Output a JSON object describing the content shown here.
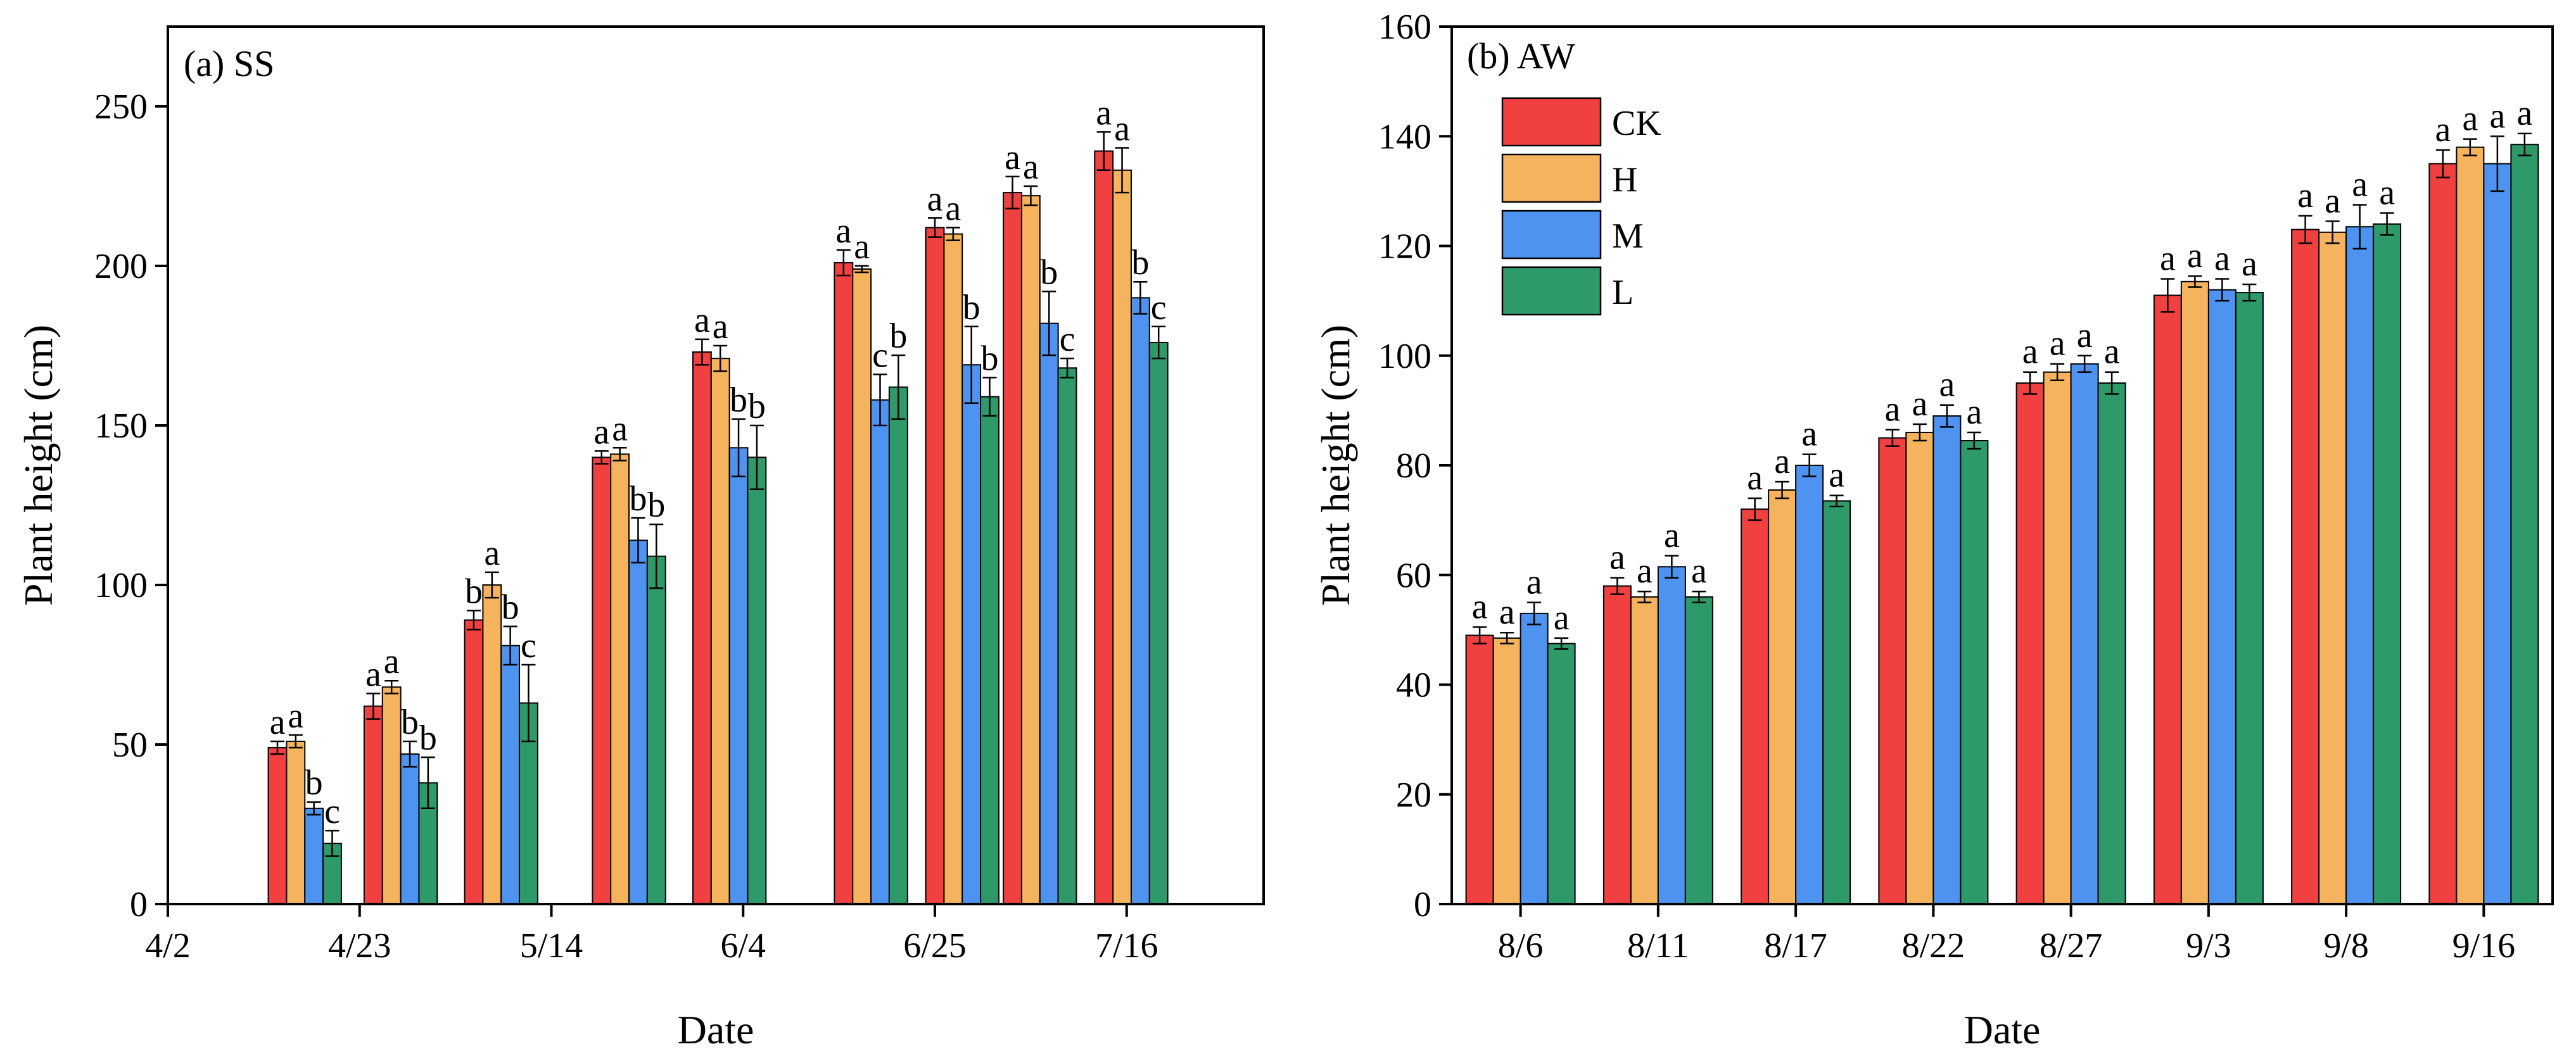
{
  "colors": {
    "CK": "#f0403f",
    "H": "#f6b35e",
    "M": "#4d93ef",
    "L": "#2f9a69",
    "axis": "#000000"
  },
  "chart_data": [
    {
      "type": "bar",
      "panel_label": "(a) SS",
      "xlabel": "Date",
      "ylabel": "Plant height (cm)",
      "xlim": [
        0,
        120
      ],
      "ylim": [
        0,
        275
      ],
      "xticks": [
        {
          "pos": 0,
          "label": "4/2"
        },
        {
          "pos": 21,
          "label": "4/23"
        },
        {
          "pos": 42,
          "label": "5/14"
        },
        {
          "pos": 63,
          "label": "6/4"
        },
        {
          "pos": 84,
          "label": "6/25"
        },
        {
          "pos": 105,
          "label": "7/16"
        }
      ],
      "yticks": [
        0,
        50,
        100,
        150,
        200,
        250
      ],
      "series_order": [
        "CK",
        "H",
        "M",
        "L"
      ],
      "groups": [
        {
          "center": 15,
          "bars": [
            {
              "series": "CK",
              "value": 49,
              "err": 2,
              "sig": "a"
            },
            {
              "series": "H",
              "value": 51,
              "err": 2,
              "sig": "a"
            },
            {
              "series": "M",
              "value": 30,
              "err": 2,
              "sig": "b"
            },
            {
              "series": "L",
              "value": 19,
              "err": 4,
              "sig": "c"
            }
          ]
        },
        {
          "center": 25.5,
          "bars": [
            {
              "series": "CK",
              "value": 62,
              "err": 4,
              "sig": "a"
            },
            {
              "series": "H",
              "value": 68,
              "err": 2,
              "sig": "a"
            },
            {
              "series": "M",
              "value": 47,
              "err": 4,
              "sig": "b"
            },
            {
              "series": "L",
              "value": 38,
              "err": 8,
              "sig": "b"
            }
          ]
        },
        {
          "center": 36.5,
          "bars": [
            {
              "series": "CK",
              "value": 89,
              "err": 3,
              "sig": "b"
            },
            {
              "series": "H",
              "value": 100,
              "err": 4,
              "sig": "a"
            },
            {
              "series": "M",
              "value": 81,
              "err": 6,
              "sig": "b"
            },
            {
              "series": "L",
              "value": 63,
              "err": 12,
              "sig": "c"
            }
          ]
        },
        {
          "center": 50.5,
          "bars": [
            {
              "series": "CK",
              "value": 140,
              "err": 2,
              "sig": "a"
            },
            {
              "series": "H",
              "value": 141,
              "err": 2,
              "sig": "a"
            },
            {
              "series": "M",
              "value": 114,
              "err": 7,
              "sig": "b"
            },
            {
              "series": "L",
              "value": 109,
              "err": 10,
              "sig": "b"
            }
          ]
        },
        {
          "center": 61.5,
          "bars": [
            {
              "series": "CK",
              "value": 173,
              "err": 4,
              "sig": "a"
            },
            {
              "series": "H",
              "value": 171,
              "err": 4,
              "sig": "a"
            },
            {
              "series": "M",
              "value": 143,
              "err": 9,
              "sig": "b"
            },
            {
              "series": "L",
              "value": 140,
              "err": 10,
              "sig": "b"
            }
          ]
        },
        {
          "center": 77,
          "bars": [
            {
              "series": "CK",
              "value": 201,
              "err": 4,
              "sig": "a"
            },
            {
              "series": "H",
              "value": 199,
              "err": 1,
              "sig": "a"
            },
            {
              "series": "M",
              "value": 158,
              "err": 8,
              "sig": "c"
            },
            {
              "series": "L",
              "value": 162,
              "err": 10,
              "sig": "b"
            }
          ]
        },
        {
          "center": 87,
          "bars": [
            {
              "series": "CK",
              "value": 212,
              "err": 3,
              "sig": "a"
            },
            {
              "series": "H",
              "value": 210,
              "err": 2,
              "sig": "a"
            },
            {
              "series": "M",
              "value": 169,
              "err": 12,
              "sig": "b"
            },
            {
              "series": "L",
              "value": 159,
              "err": 6,
              "sig": "b"
            }
          ]
        },
        {
          "center": 95.5,
          "bars": [
            {
              "series": "CK",
              "value": 223,
              "err": 5,
              "sig": "a"
            },
            {
              "series": "H",
              "value": 222,
              "err": 3,
              "sig": "a"
            },
            {
              "series": "M",
              "value": 182,
              "err": 10,
              "sig": "b"
            },
            {
              "series": "L",
              "value": 168,
              "err": 3,
              "sig": "c"
            }
          ]
        },
        {
          "center": 105.5,
          "bars": [
            {
              "series": "CK",
              "value": 236,
              "err": 6,
              "sig": "a"
            },
            {
              "series": "H",
              "value": 230,
              "err": 7,
              "sig": "a"
            },
            {
              "series": "M",
              "value": 190,
              "err": 5,
              "sig": "b"
            },
            {
              "series": "L",
              "value": 176,
              "err": 5,
              "sig": "c"
            }
          ]
        }
      ]
    },
    {
      "type": "bar",
      "panel_label": "(b) AW",
      "xlabel": "Date",
      "ylabel": "Plant height (cm)",
      "xlim": [
        0,
        8
      ],
      "ylim": [
        0,
        160
      ],
      "categories": [
        "8/6",
        "8/11",
        "8/17",
        "8/22",
        "8/27",
        "9/3",
        "9/8",
        "9/16"
      ],
      "yticks": [
        0,
        20,
        40,
        60,
        80,
        100,
        120,
        140,
        160
      ],
      "legend": [
        "CK",
        "H",
        "M",
        "L"
      ],
      "legend_position": "top-left",
      "series": [
        {
          "name": "CK",
          "values": [
            49,
            58,
            72,
            85,
            95,
            111,
            123,
            135
          ],
          "err": [
            1.5,
            1.5,
            2,
            1.5,
            2,
            3,
            2.5,
            2.5
          ],
          "sig": [
            "a",
            "a",
            "a",
            "a",
            "a",
            "a",
            "a",
            "a"
          ]
        },
        {
          "name": "H",
          "values": [
            48.5,
            56,
            75.5,
            86,
            97,
            113.5,
            122.5,
            138
          ],
          "err": [
            1,
            1,
            1.5,
            1.5,
            1.5,
            1,
            2,
            1.5
          ],
          "sig": [
            "a",
            "a",
            "a",
            "a",
            "a",
            "a",
            "a",
            "a"
          ]
        },
        {
          "name": "M",
          "values": [
            53,
            61.5,
            80,
            89,
            98.5,
            112,
            123.5,
            135
          ],
          "err": [
            2,
            2,
            2,
            2,
            1.5,
            2,
            4,
            5
          ],
          "sig": [
            "a",
            "a",
            "a",
            "a",
            "a",
            "a",
            "a",
            "a"
          ]
        },
        {
          "name": "L",
          "values": [
            47.5,
            56,
            73.5,
            84.5,
            95,
            111.5,
            124,
            138.5
          ],
          "err": [
            1,
            1,
            1,
            1.5,
            2,
            1.5,
            2,
            2
          ],
          "sig": [
            "a",
            "a",
            "a",
            "a",
            "a",
            "a",
            "a",
            "a"
          ]
        }
      ]
    }
  ]
}
